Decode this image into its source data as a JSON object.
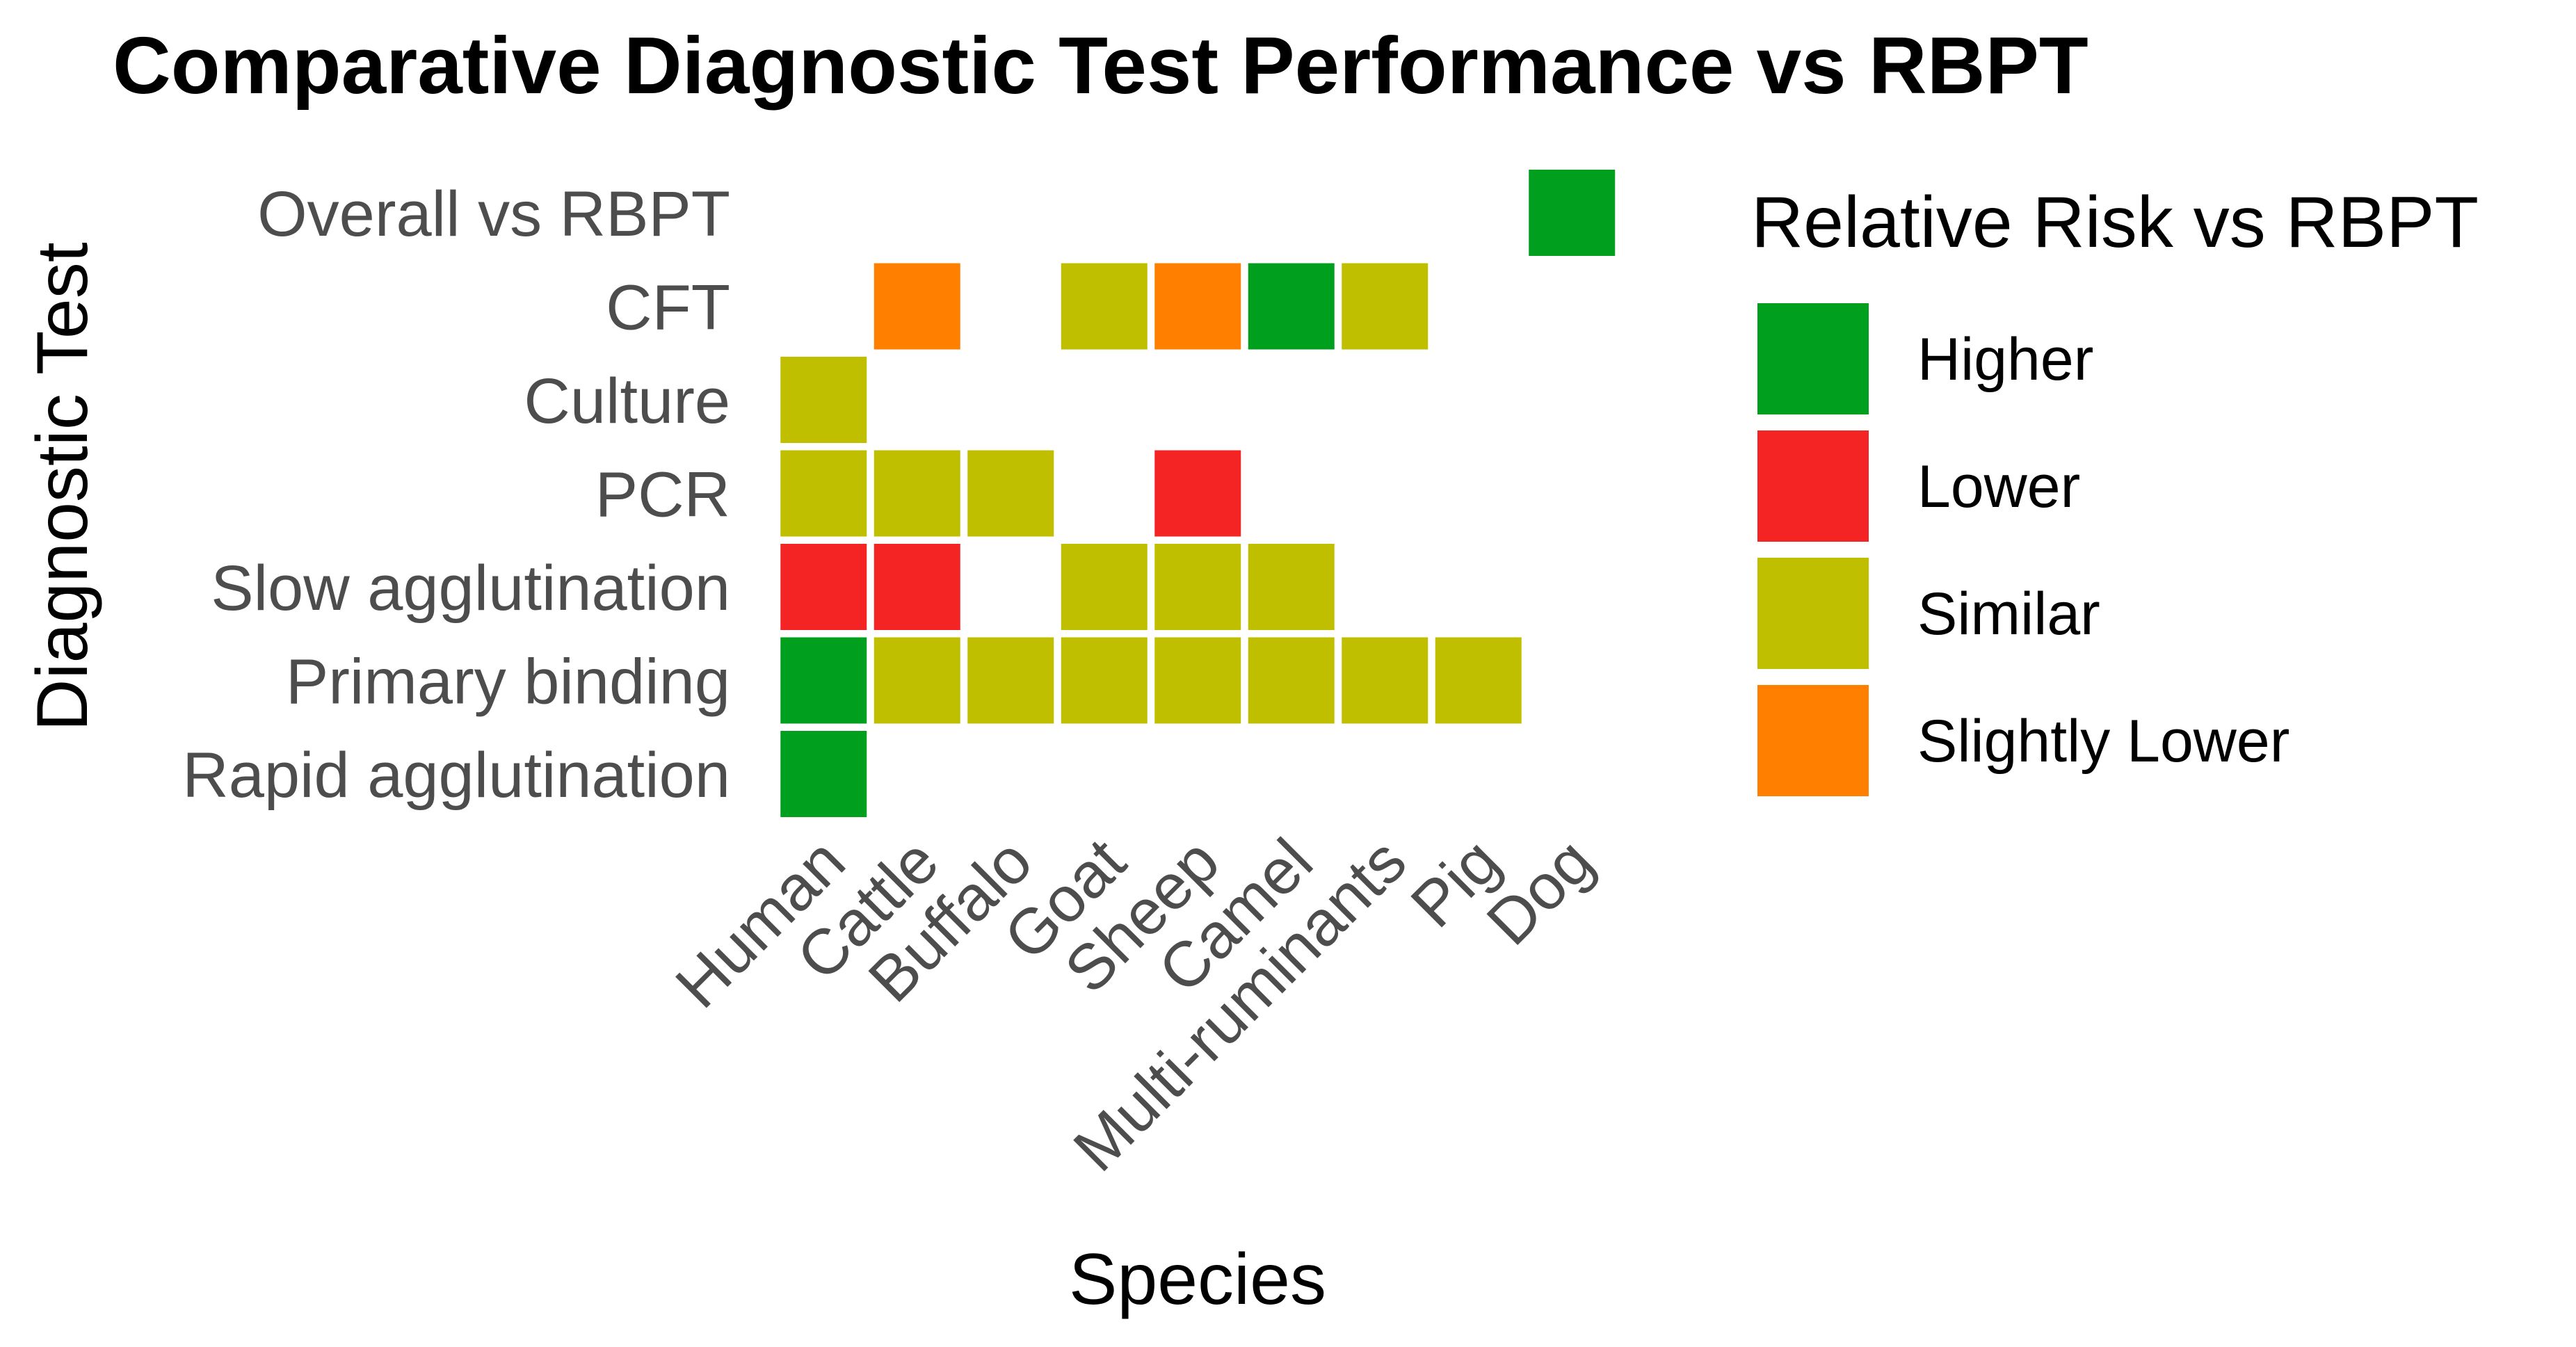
{
  "chart_data": {
    "type": "heatmap",
    "title": "Comparative Diagnostic Test Performance vs RBPT",
    "xlabel": "Species",
    "ylabel": "Diagnostic Test",
    "x_categories": [
      "Human",
      "Cattle",
      "Buffalo",
      "Goat",
      "Sheep",
      "Camel",
      "Multi-ruminants",
      "Pig",
      "Dog"
    ],
    "y_categories": [
      "Rapid agglutination",
      "Primary binding",
      "Slow agglutination",
      "PCR",
      "Culture",
      "CFT",
      "Overall vs RBPT"
    ],
    "legend": {
      "title": "Relative Risk vs RBPT",
      "position": "right",
      "entries": [
        {
          "label": "Higher",
          "color": "#00A01E"
        },
        {
          "label": "Lower",
          "color": "#F42424"
        },
        {
          "label": "Similar",
          "color": "#BFBF00"
        },
        {
          "label": "Slightly Lower",
          "color": "#FF7F00"
        }
      ]
    },
    "cells": [
      {
        "test": "Overall vs RBPT",
        "species": "Dog",
        "value": "Higher"
      },
      {
        "test": "CFT",
        "species": "Cattle",
        "value": "Slightly Lower"
      },
      {
        "test": "CFT",
        "species": "Goat",
        "value": "Similar"
      },
      {
        "test": "CFT",
        "species": "Sheep",
        "value": "Slightly Lower"
      },
      {
        "test": "CFT",
        "species": "Camel",
        "value": "Higher"
      },
      {
        "test": "CFT",
        "species": "Multi-ruminants",
        "value": "Similar"
      },
      {
        "test": "Culture",
        "species": "Human",
        "value": "Similar"
      },
      {
        "test": "PCR",
        "species": "Human",
        "value": "Similar"
      },
      {
        "test": "PCR",
        "species": "Cattle",
        "value": "Similar"
      },
      {
        "test": "PCR",
        "species": "Buffalo",
        "value": "Similar"
      },
      {
        "test": "PCR",
        "species": "Sheep",
        "value": "Lower"
      },
      {
        "test": "Slow agglutination",
        "species": "Human",
        "value": "Lower"
      },
      {
        "test": "Slow agglutination",
        "species": "Cattle",
        "value": "Lower"
      },
      {
        "test": "Slow agglutination",
        "species": "Goat",
        "value": "Similar"
      },
      {
        "test": "Slow agglutination",
        "species": "Sheep",
        "value": "Similar"
      },
      {
        "test": "Slow agglutination",
        "species": "Camel",
        "value": "Similar"
      },
      {
        "test": "Primary binding",
        "species": "Human",
        "value": "Higher"
      },
      {
        "test": "Primary binding",
        "species": "Cattle",
        "value": "Similar"
      },
      {
        "test": "Primary binding",
        "species": "Buffalo",
        "value": "Similar"
      },
      {
        "test": "Primary binding",
        "species": "Goat",
        "value": "Similar"
      },
      {
        "test": "Primary binding",
        "species": "Sheep",
        "value": "Similar"
      },
      {
        "test": "Primary binding",
        "species": "Camel",
        "value": "Similar"
      },
      {
        "test": "Primary binding",
        "species": "Multi-ruminants",
        "value": "Similar"
      },
      {
        "test": "Primary binding",
        "species": "Pig",
        "value": "Similar"
      },
      {
        "test": "Rapid agglutination",
        "species": "Human",
        "value": "Higher"
      }
    ]
  }
}
